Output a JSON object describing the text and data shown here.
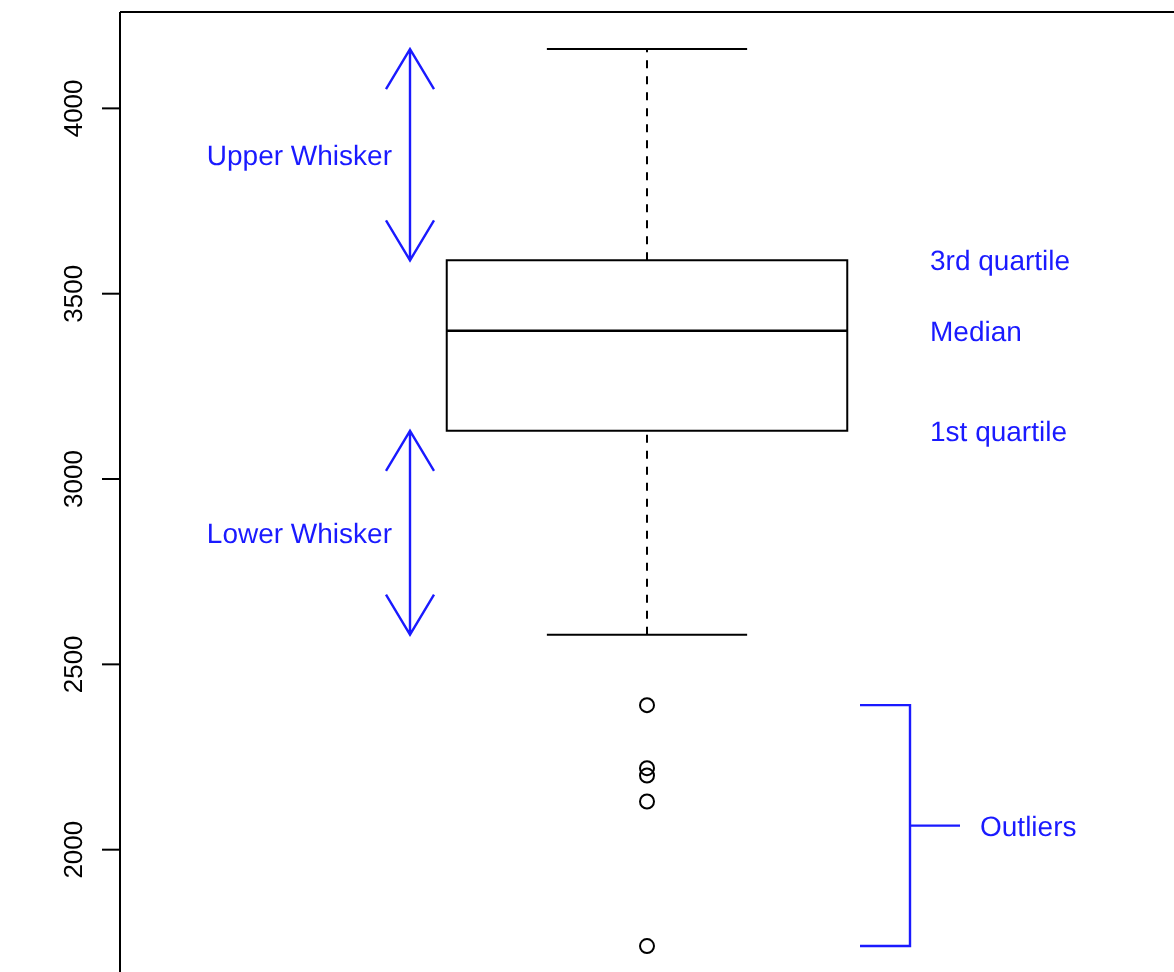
{
  "chart_data": {
    "type": "box",
    "categories": [
      null
    ],
    "color": "#000000",
    "boxes": [
      {
        "low": 2580,
        "q1": 3130,
        "median": 3400,
        "q3": 3590,
        "high": 4160,
        "outliers": [
          2390,
          2220,
          2200,
          2130,
          1740
        ]
      }
    ],
    "ylim": [
      1670,
      4260
    ],
    "yticks": [
      2000,
      2500,
      3000,
      3500,
      4000
    ],
    "tick_labels": "y",
    "annotations": [
      "Upper Whisker",
      "Lower Whisker",
      "3rd quartile",
      "Median",
      "1st quartile",
      "Outliers"
    ]
  }
}
